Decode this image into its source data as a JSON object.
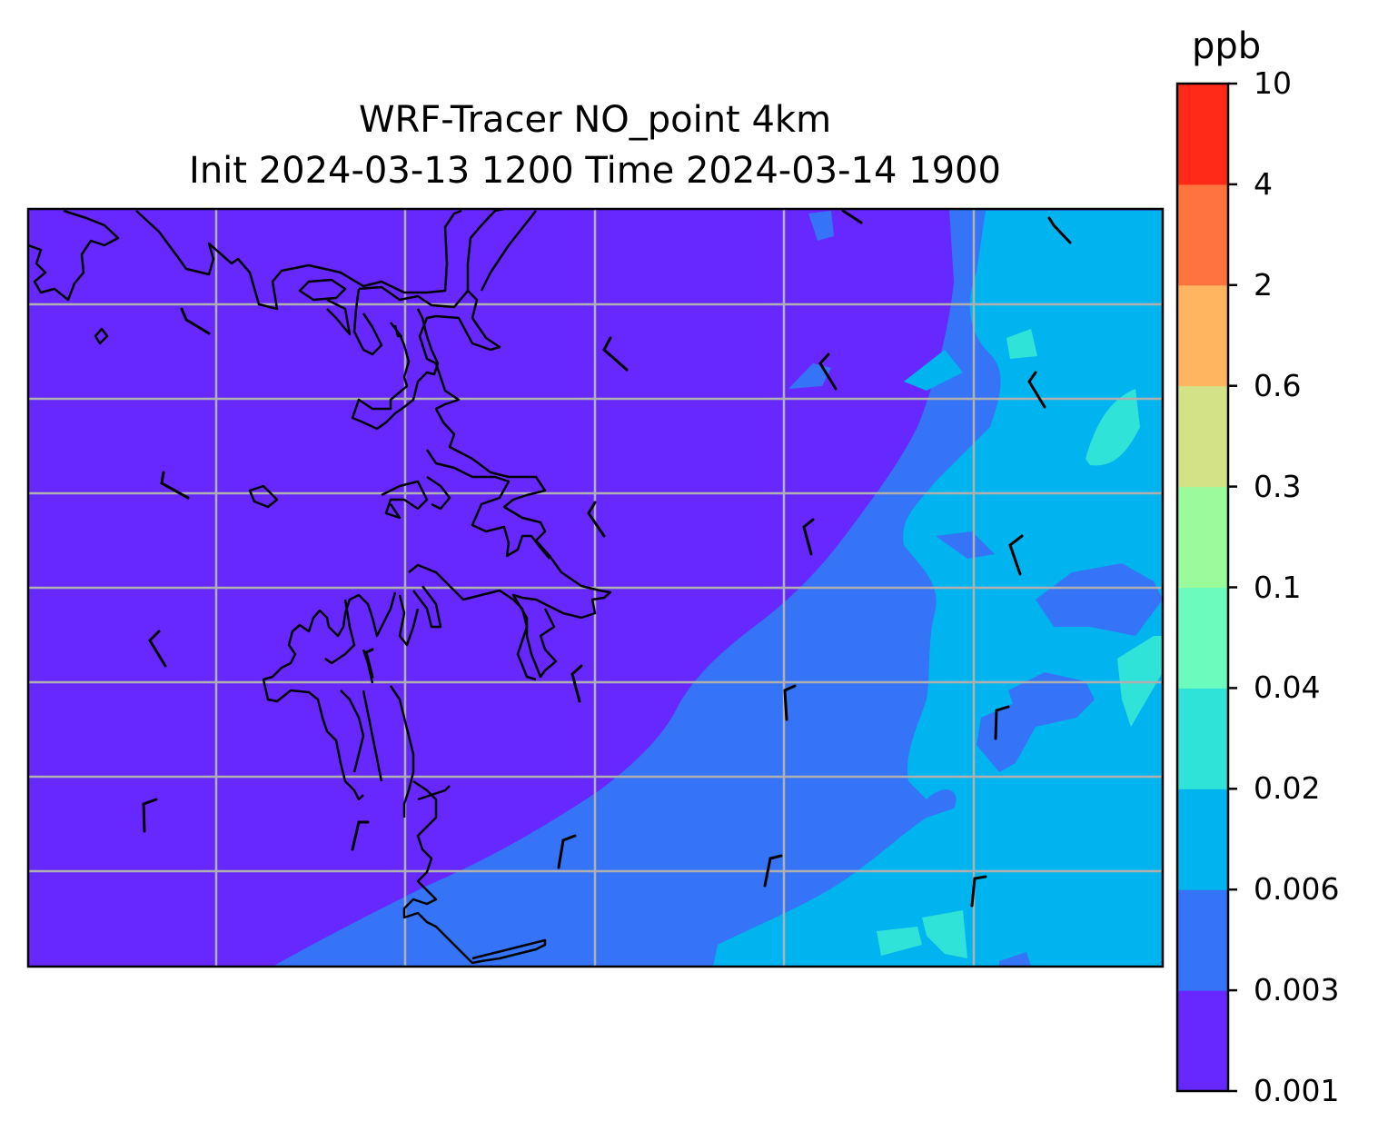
{
  "title_line1": "WRF-Tracer NO_point 4km",
  "title_line2": "Init 2024-03-13 1200 Time 2024-03-14 1900",
  "colorbar": {
    "unit": "ppb",
    "levels": [
      "0.001",
      "0.003",
      "0.006",
      "0.02",
      "0.04",
      "0.1",
      "0.3",
      "0.6",
      "2",
      "4",
      "10"
    ],
    "colors": [
      "#6628fe",
      "#3574f6",
      "#00b5ef",
      "#30e3d8",
      "#6bfcbd",
      "#9bfb9b",
      "#d3e286",
      "#ffb460",
      "#ff743e",
      "#ff2a18"
    ]
  },
  "map": {
    "field": "NO tracer concentration, filled contours",
    "background_color": "#6628fe",
    "gridlines": true,
    "gridline_color": "#b0b0b0",
    "coastline_color": "#000000",
    "wind_barbs": true
  }
}
